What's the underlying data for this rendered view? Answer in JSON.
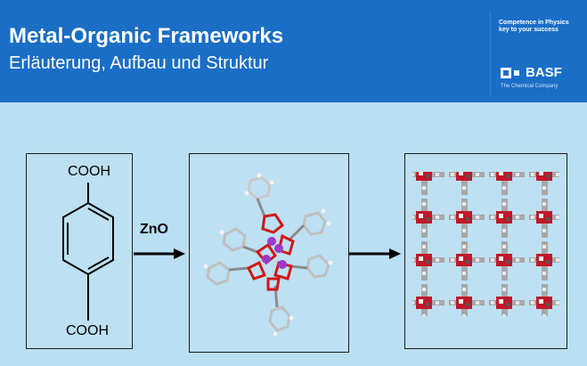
{
  "header": {
    "title": "Metal-Organic Frameworks",
    "subtitle": "Erläuterung, Aufbau und Struktur"
  },
  "brand": {
    "tagline": "Competence in Physics key to your success",
    "logo": "BASF",
    "company": "The Chemical Company"
  },
  "reaction": {
    "molecule_top_group": "COOH",
    "molecule_bottom_group": "COOH",
    "reagent": "ZnO"
  },
  "colors": {
    "background": "#b9dff2",
    "header": "#1a6ec6",
    "panel": "#bde0f3",
    "oxygen": "#d01818",
    "zinc": "#9b3bc8",
    "carbon": "#b8b8b8"
  },
  "icons": [
    "benzene-ring-icon",
    "arrow-right-icon",
    "zinc-carboxylate-cluster-icon",
    "framework-lattice-icon",
    "basf-logo-icon"
  ]
}
